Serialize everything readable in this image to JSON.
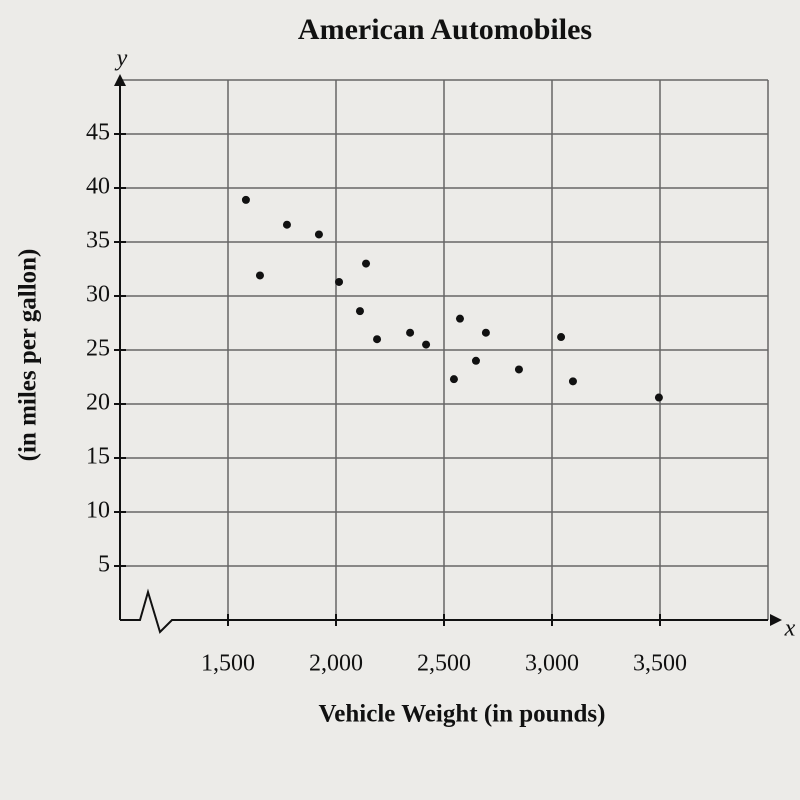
{
  "chart_data": {
    "type": "scatter",
    "title": "American Automobiles",
    "x_label": "Vehicle Weight (in pounds)",
    "y_label": "(in miles per gallon)",
    "x_axis_letter": "x",
    "y_axis_letter": "y",
    "x": [
      1583,
      1648,
      1773,
      1921,
      2014,
      2139,
      2111,
      2190,
      2343,
      2417,
      2574,
      2694,
      2546,
      2648,
      2847,
      3042,
      3097,
      3495
    ],
    "values": [
      38.9,
      31.9,
      36.6,
      35.7,
      31.3,
      33.0,
      28.6,
      26.0,
      26.6,
      25.5,
      27.9,
      26.6,
      22.3,
      24.0,
      23.2,
      26.2,
      22.1,
      20.6
    ],
    "color": "#111111",
    "xlim": [
      1000,
      4000
    ],
    "ylim": [
      0,
      50
    ],
    "xticks": [
      {
        "value": 1500,
        "label": "1,500"
      },
      {
        "value": 2000,
        "label": "2,000"
      },
      {
        "value": 2500,
        "label": "2,500"
      },
      {
        "value": 3000,
        "label": "3,000"
      },
      {
        "value": 3500,
        "label": "3,500"
      }
    ],
    "yticks": [
      5,
      10,
      15,
      20,
      25,
      30,
      35,
      40,
      45
    ],
    "grid": true
  }
}
